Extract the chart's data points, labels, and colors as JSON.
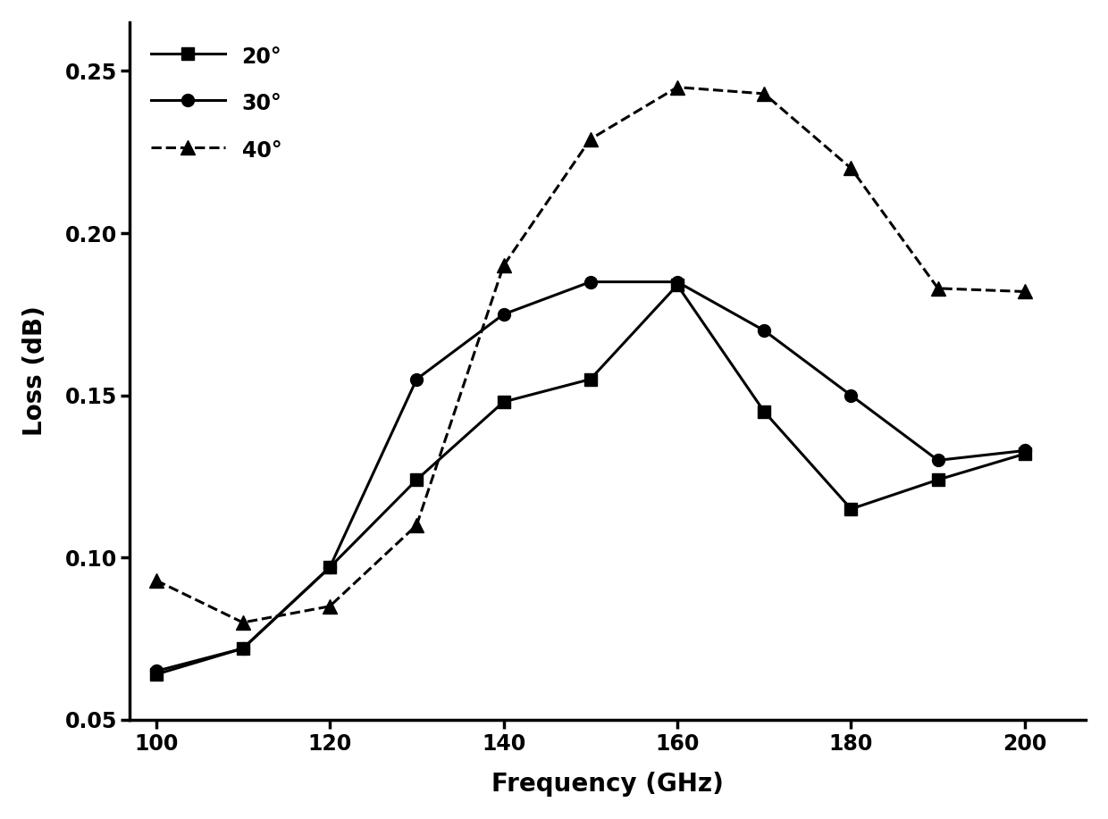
{
  "title": "",
  "xlabel": "Frequency (GHz)",
  "ylabel": "Loss (dB)",
  "xlim": [
    97,
    207
  ],
  "ylim": [
    0.05,
    0.265
  ],
  "xticks": [
    100,
    120,
    140,
    160,
    180,
    200
  ],
  "yticks": [
    0.05,
    0.1,
    0.15,
    0.2,
    0.25
  ],
  "series": [
    {
      "label": "20°",
      "x": [
        100,
        110,
        120,
        130,
        140,
        150,
        160,
        170,
        180,
        190,
        200
      ],
      "y": [
        0.064,
        0.072,
        0.097,
        0.124,
        0.148,
        0.155,
        0.184,
        0.145,
        0.115,
        0.124,
        0.132
      ],
      "marker": "s",
      "linestyle": "-",
      "color": "#000000",
      "markersize": 10,
      "linewidth": 2.2
    },
    {
      "label": "30°",
      "x": [
        100,
        110,
        120,
        130,
        140,
        150,
        160,
        170,
        180,
        190,
        200
      ],
      "y": [
        0.065,
        0.072,
        0.097,
        0.155,
        0.175,
        0.185,
        0.185,
        0.17,
        0.15,
        0.13,
        0.133
      ],
      "marker": "o",
      "linestyle": "-",
      "color": "#000000",
      "markersize": 10,
      "linewidth": 2.2
    },
    {
      "label": "40°",
      "x": [
        100,
        110,
        120,
        130,
        140,
        150,
        160,
        170,
        180,
        190,
        200
      ],
      "y": [
        0.093,
        0.08,
        0.085,
        0.11,
        0.19,
        0.229,
        0.245,
        0.243,
        0.22,
        0.183,
        0.182
      ],
      "marker": "^",
      "linestyle": "--",
      "color": "#000000",
      "markersize": 11,
      "linewidth": 2.2
    }
  ],
  "legend_loc": "upper left",
  "legend_fontsize": 17,
  "tick_fontsize": 17,
  "label_fontsize": 20,
  "background_color": "#ffffff"
}
